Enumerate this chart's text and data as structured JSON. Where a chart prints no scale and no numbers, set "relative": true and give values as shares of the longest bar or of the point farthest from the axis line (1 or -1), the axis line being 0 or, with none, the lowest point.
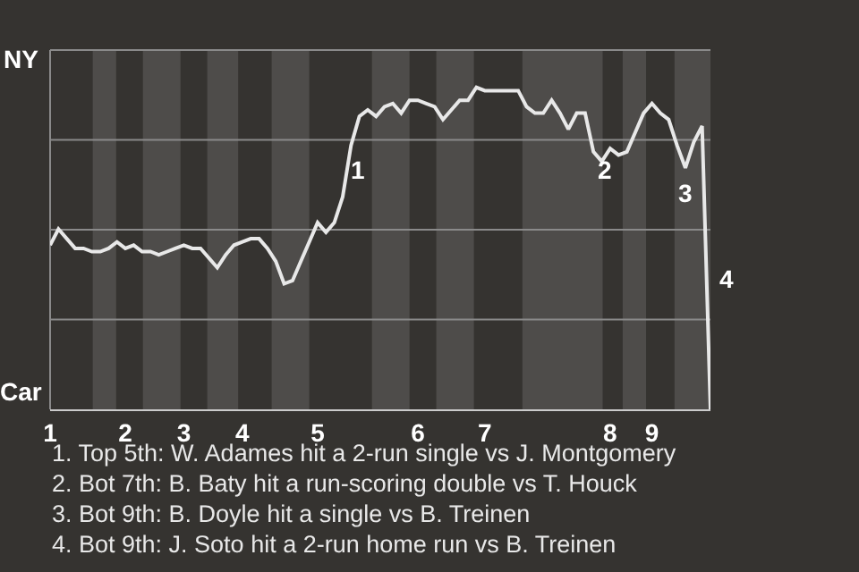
{
  "chart_data": {
    "type": "line",
    "relative": true,
    "categories": [
      "1",
      null,
      null,
      null,
      null,
      null,
      null,
      null,
      null,
      "2",
      null,
      null,
      null,
      null,
      null,
      null,
      "3",
      null,
      null,
      null,
      null,
      null,
      null,
      "4",
      null,
      null,
      null,
      null,
      null,
      null,
      null,
      null,
      "5",
      null,
      null,
      null,
      null,
      null,
      null,
      null,
      null,
      null,
      null,
      null,
      "6",
      null,
      null,
      null,
      null,
      null,
      null,
      null,
      "7",
      null,
      null,
      null,
      null,
      null,
      null,
      null,
      null,
      null,
      null,
      null,
      null,
      null,
      null,
      "8",
      null,
      null,
      null,
      null,
      "9",
      null,
      null,
      null,
      null,
      null,
      null,
      null
    ],
    "grid": "y",
    "marker": "none",
    "line_style": "solid",
    "series": [
      {
        "color": "#e8e8e8",
        "values": [
          0.51,
          0.56,
          0.53,
          0.5,
          0.5,
          0.49,
          0.49,
          0.5,
          0.52,
          0.5,
          0.51,
          0.49,
          0.49,
          0.48,
          0.49,
          0.5,
          0.51,
          0.5,
          0.5,
          0.47,
          0.44,
          0.48,
          0.51,
          0.52,
          0.53,
          0.53,
          0.5,
          0.46,
          0.39,
          0.4,
          0.46,
          0.52,
          0.58,
          0.55,
          0.58,
          0.66,
          0.82,
          0.91,
          0.93,
          0.91,
          0.94,
          0.95,
          0.92,
          0.96,
          0.96,
          0.95,
          0.94,
          0.9,
          0.93,
          0.96,
          0.96,
          1.0,
          0.99,
          0.99,
          0.99,
          0.99,
          0.99,
          0.94,
          0.92,
          0.92,
          0.96,
          0.92,
          0.87,
          0.92,
          0.92,
          0.8,
          0.77,
          0.81,
          0.79,
          0.8,
          0.86,
          0.92,
          0.95,
          0.92,
          0.9,
          0.82,
          0.75,
          0.83,
          0.88,
          0
        ]
      }
    ],
    "annotations": [
      "NY",
      "Car",
      "1",
      "2",
      "3",
      "4",
      "1. Top 5th: W. Adames hit a 2-run single vs J. Montgomery",
      "2. Bot 7th: B. Baty hit a run-scoring double vs T. Houck",
      "3. Bot 9th: B. Doyle hit a single vs B. Treinen",
      "4. Bot 9th: J. Soto hit a 2-run home run vs B. Treinen"
    ]
  }
}
